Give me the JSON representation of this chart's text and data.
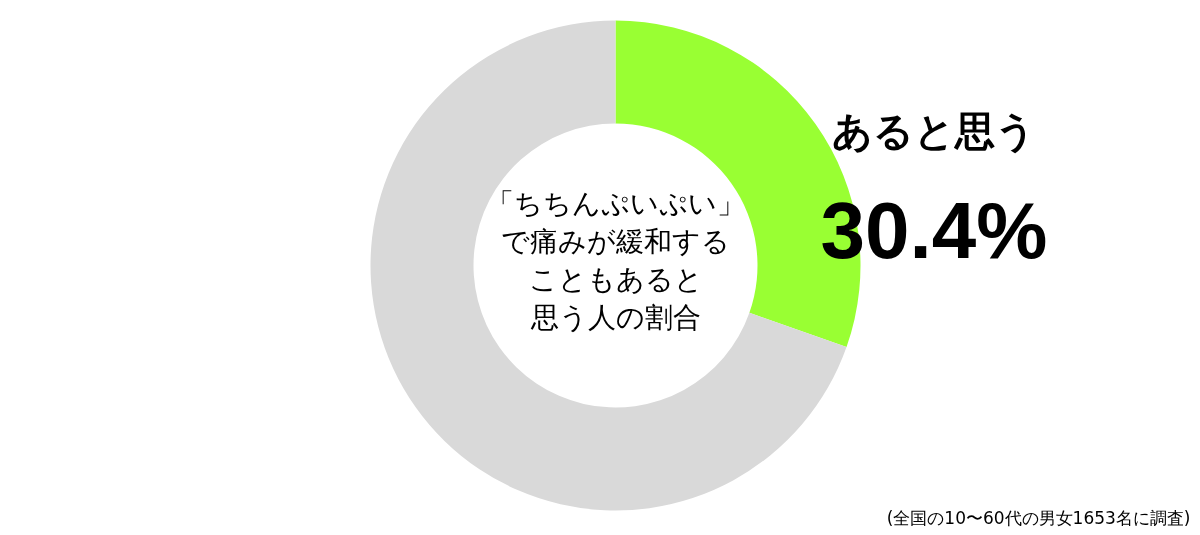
{
  "chart_data": {
    "type": "donut",
    "title": "「ちちんぷいぷい」で痛みが緩和することもあると思う人の割合",
    "categories": [
      "あると思う",
      null
    ],
    "values": [
      30.4,
      69.6
    ],
    "value_labels": [
      "30.4%",
      null
    ],
    "colors": [
      "#99ff33",
      "#d9d9d9"
    ],
    "annotations": [
      "(全国の10〜60代の男女1653名に調査)"
    ]
  }
}
